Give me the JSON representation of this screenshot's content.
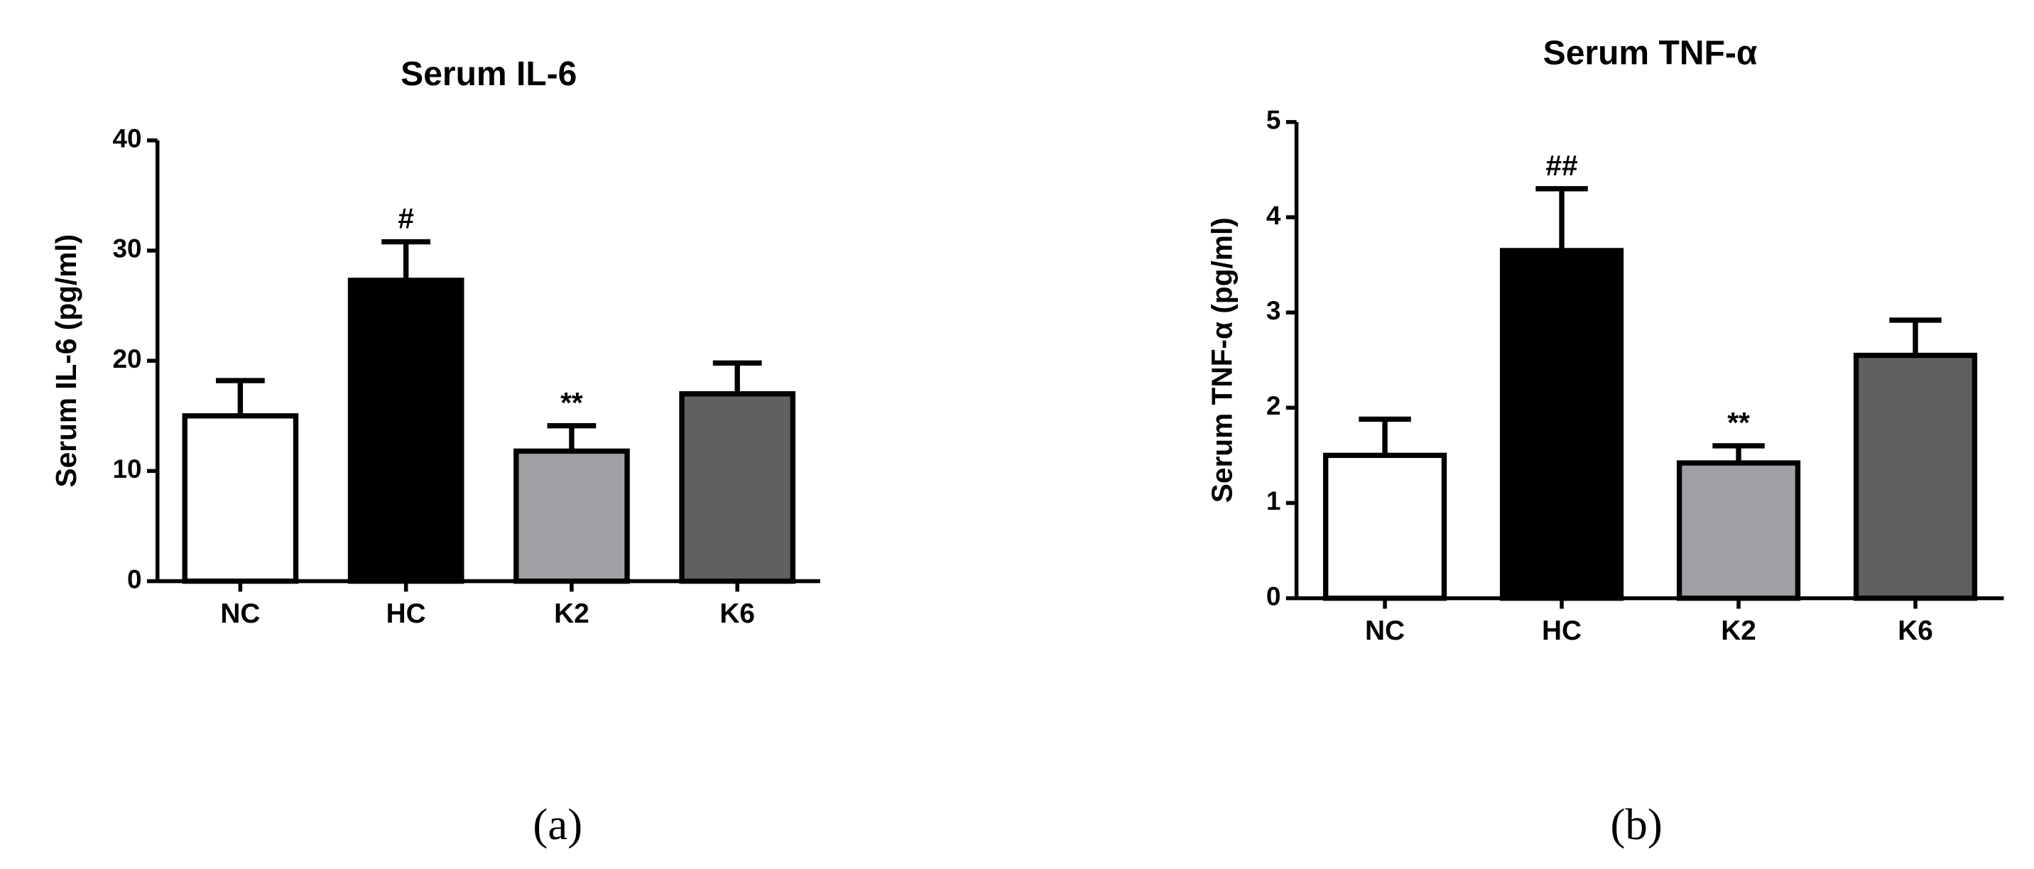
{
  "chart_data": [
    {
      "type": "bar",
      "title": "Serum IL-6",
      "ylabel": "Serum IL-6 (pg/ml)",
      "panel_label": "(a)",
      "categories": [
        "NC",
        "HC",
        "K2",
        "K6"
      ],
      "values": [
        15,
        27.3,
        11.8,
        17
      ],
      "errors": [
        3.2,
        3.5,
        2.3,
        2.8
      ],
      "annotations": [
        null,
        "#",
        "**",
        null
      ],
      "colors": [
        "#ffffff",
        "#000000",
        "#a0a0a4",
        "#606060"
      ],
      "ylim": [
        0,
        40
      ],
      "yticks": [
        0,
        10,
        20,
        30,
        40
      ]
    },
    {
      "type": "bar",
      "title": "Serum TNF-α",
      "ylabel": "Serum TNF-α (pg/ml)",
      "panel_label": "(b)",
      "categories": [
        "NC",
        "HC",
        "K2",
        "K6"
      ],
      "values": [
        1.5,
        3.65,
        1.42,
        2.55
      ],
      "errors": [
        0.38,
        0.65,
        0.18,
        0.37
      ],
      "annotations": [
        null,
        "##",
        "**",
        null
      ],
      "colors": [
        "#ffffff",
        "#000000",
        "#a0a0a4",
        "#606060"
      ],
      "ylim": [
        0,
        5
      ],
      "yticks": [
        0,
        1,
        2,
        3,
        4,
        5
      ]
    }
  ]
}
